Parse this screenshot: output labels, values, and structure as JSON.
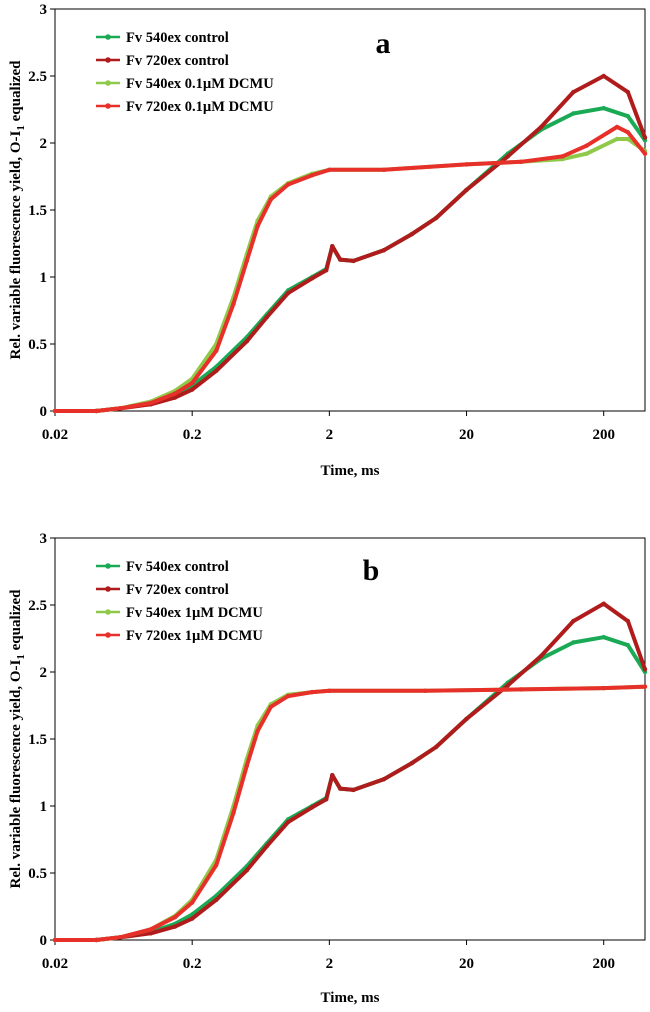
{
  "chart_data": [
    {
      "type": "line",
      "panel_label": "a",
      "xlabel": "Time, ms",
      "ylabel": "Rel. variable fluorescence yield, O-I",
      "ylabel_sub": "1",
      "ylabel_suffix": " equalized",
      "x_scale": "log",
      "xlim": [
        0.02,
        400
      ],
      "ylim": [
        0,
        3
      ],
      "xticks": [
        {
          "v": 0.02,
          "label": "0.02"
        },
        {
          "v": 0.2,
          "label": "0.2"
        },
        {
          "v": 2,
          "label": "2"
        },
        {
          "v": 20,
          "label": "20"
        },
        {
          "v": 200,
          "label": "200"
        }
      ],
      "yticks": [
        {
          "v": 0,
          "label": "0"
        },
        {
          "v": 0.5,
          "label": "0.5"
        },
        {
          "v": 1,
          "label": "1"
        },
        {
          "v": 1.5,
          "label": "1.5"
        },
        {
          "v": 2,
          "label": "2"
        },
        {
          "v": 2.5,
          "label": "2.5"
        },
        {
          "v": 3,
          "label": "3"
        }
      ],
      "legend_position": "top-left",
      "series": [
        {
          "name": "Fv 540ex control",
          "color": "#1aaa55",
          "points": [
            [
              0.02,
              0
            ],
            [
              0.04,
              0
            ],
            [
              0.06,
              0.02
            ],
            [
              0.1,
              0.06
            ],
            [
              0.15,
              0.12
            ],
            [
              0.2,
              0.19
            ],
            [
              0.3,
              0.33
            ],
            [
              0.5,
              0.55
            ],
            [
              0.7,
              0.72
            ],
            [
              1,
              0.9
            ],
            [
              1.5,
              1.0
            ],
            [
              1.9,
              1.06
            ],
            [
              2.1,
              1.23
            ],
            [
              2.4,
              1.13
            ],
            [
              3,
              1.12
            ],
            [
              5,
              1.2
            ],
            [
              8,
              1.32
            ],
            [
              12,
              1.44
            ],
            [
              20,
              1.65
            ],
            [
              40,
              1.92
            ],
            [
              70,
              2.1
            ],
            [
              120,
              2.22
            ],
            [
              200,
              2.26
            ],
            [
              300,
              2.2
            ],
            [
              400,
              2.02
            ]
          ]
        },
        {
          "name": "Fv 720ex control",
          "color": "#b01c1c",
          "points": [
            [
              0.02,
              0
            ],
            [
              0.04,
              0
            ],
            [
              0.06,
              0.02
            ],
            [
              0.1,
              0.05
            ],
            [
              0.15,
              0.1
            ],
            [
              0.2,
              0.16
            ],
            [
              0.3,
              0.3
            ],
            [
              0.5,
              0.52
            ],
            [
              0.7,
              0.7
            ],
            [
              1,
              0.88
            ],
            [
              1.5,
              0.99
            ],
            [
              1.9,
              1.05
            ],
            [
              2.1,
              1.23
            ],
            [
              2.4,
              1.13
            ],
            [
              3,
              1.12
            ],
            [
              5,
              1.2
            ],
            [
              8,
              1.32
            ],
            [
              12,
              1.44
            ],
            [
              20,
              1.65
            ],
            [
              40,
              1.9
            ],
            [
              70,
              2.12
            ],
            [
              120,
              2.38
            ],
            [
              200,
              2.5
            ],
            [
              300,
              2.38
            ],
            [
              400,
              2.04
            ]
          ]
        },
        {
          "name": "Fv 540ex 0.1µM DCMU",
          "color": "#8fc94a",
          "points": [
            [
              0.02,
              0
            ],
            [
              0.04,
              0
            ],
            [
              0.06,
              0.02
            ],
            [
              0.1,
              0.07
            ],
            [
              0.15,
              0.15
            ],
            [
              0.2,
              0.24
            ],
            [
              0.3,
              0.5
            ],
            [
              0.4,
              0.85
            ],
            [
              0.5,
              1.17
            ],
            [
              0.6,
              1.42
            ],
            [
              0.75,
              1.6
            ],
            [
              1,
              1.7
            ],
            [
              1.5,
              1.77
            ],
            [
              2,
              1.8
            ],
            [
              5,
              1.8
            ],
            [
              20,
              1.84
            ],
            [
              50,
              1.86
            ],
            [
              100,
              1.88
            ],
            [
              150,
              1.92
            ],
            [
              250,
              2.03
            ],
            [
              300,
              2.03
            ],
            [
              400,
              1.94
            ]
          ]
        },
        {
          "name": "Fv 720ex 0.1µM DCMU",
          "color": "#e8302a",
          "points": [
            [
              0.02,
              0
            ],
            [
              0.04,
              0
            ],
            [
              0.06,
              0.02
            ],
            [
              0.1,
              0.06
            ],
            [
              0.15,
              0.13
            ],
            [
              0.2,
              0.21
            ],
            [
              0.3,
              0.45
            ],
            [
              0.4,
              0.8
            ],
            [
              0.5,
              1.12
            ],
            [
              0.6,
              1.38
            ],
            [
              0.75,
              1.58
            ],
            [
              1,
              1.69
            ],
            [
              1.5,
              1.76
            ],
            [
              2,
              1.8
            ],
            [
              5,
              1.8
            ],
            [
              20,
              1.84
            ],
            [
              50,
              1.86
            ],
            [
              100,
              1.9
            ],
            [
              150,
              1.98
            ],
            [
              250,
              2.12
            ],
            [
              300,
              2.08
            ],
            [
              400,
              1.92
            ]
          ]
        }
      ]
    },
    {
      "type": "line",
      "panel_label": "b",
      "xlabel": "Time, ms",
      "ylabel": "Rel. variable fluorescence yield, O-I",
      "ylabel_sub": "1",
      "ylabel_suffix": " equalized",
      "x_scale": "log",
      "xlim": [
        0.02,
        400
      ],
      "ylim": [
        0,
        3
      ],
      "xticks": [
        {
          "v": 0.02,
          "label": "0.02"
        },
        {
          "v": 0.2,
          "label": "0.2"
        },
        {
          "v": 2,
          "label": "2"
        },
        {
          "v": 20,
          "label": "20"
        },
        {
          "v": 200,
          "label": "200"
        }
      ],
      "yticks": [
        {
          "v": 0,
          "label": "0"
        },
        {
          "v": 0.5,
          "label": "0.5"
        },
        {
          "v": 1,
          "label": "1"
        },
        {
          "v": 1.5,
          "label": "1.5"
        },
        {
          "v": 2,
          "label": "2"
        },
        {
          "v": 2.5,
          "label": "2.5"
        },
        {
          "v": 3,
          "label": "3"
        }
      ],
      "legend_position": "top-left",
      "series": [
        {
          "name": "Fv 540ex control",
          "color": "#1aaa55",
          "points": [
            [
              0.02,
              0
            ],
            [
              0.04,
              0
            ],
            [
              0.06,
              0.02
            ],
            [
              0.1,
              0.06
            ],
            [
              0.15,
              0.12
            ],
            [
              0.2,
              0.19
            ],
            [
              0.3,
              0.33
            ],
            [
              0.5,
              0.55
            ],
            [
              0.7,
              0.72
            ],
            [
              1,
              0.9
            ],
            [
              1.5,
              1.0
            ],
            [
              1.9,
              1.06
            ],
            [
              2.1,
              1.23
            ],
            [
              2.4,
              1.13
            ],
            [
              3,
              1.12
            ],
            [
              5,
              1.2
            ],
            [
              8,
              1.32
            ],
            [
              12,
              1.44
            ],
            [
              20,
              1.65
            ],
            [
              40,
              1.92
            ],
            [
              70,
              2.1
            ],
            [
              120,
              2.22
            ],
            [
              200,
              2.26
            ],
            [
              300,
              2.2
            ],
            [
              400,
              2.0
            ]
          ]
        },
        {
          "name": "Fv 720ex control",
          "color": "#b01c1c",
          "points": [
            [
              0.02,
              0
            ],
            [
              0.04,
              0
            ],
            [
              0.06,
              0.02
            ],
            [
              0.1,
              0.05
            ],
            [
              0.15,
              0.1
            ],
            [
              0.2,
              0.16
            ],
            [
              0.3,
              0.3
            ],
            [
              0.5,
              0.52
            ],
            [
              0.7,
              0.7
            ],
            [
              1,
              0.88
            ],
            [
              1.5,
              0.99
            ],
            [
              1.9,
              1.05
            ],
            [
              2.1,
              1.23
            ],
            [
              2.4,
              1.13
            ],
            [
              3,
              1.12
            ],
            [
              5,
              1.2
            ],
            [
              8,
              1.32
            ],
            [
              12,
              1.44
            ],
            [
              20,
              1.65
            ],
            [
              40,
              1.9
            ],
            [
              70,
              2.12
            ],
            [
              120,
              2.38
            ],
            [
              200,
              2.51
            ],
            [
              300,
              2.38
            ],
            [
              400,
              2.02
            ]
          ]
        },
        {
          "name": "Fv 540ex 1µM DCMU",
          "color": "#8fc94a",
          "points": [
            [
              0.02,
              0
            ],
            [
              0.04,
              0
            ],
            [
              0.06,
              0.02
            ],
            [
              0.1,
              0.08
            ],
            [
              0.15,
              0.18
            ],
            [
              0.2,
              0.3
            ],
            [
              0.3,
              0.6
            ],
            [
              0.4,
              1.0
            ],
            [
              0.5,
              1.35
            ],
            [
              0.6,
              1.6
            ],
            [
              0.75,
              1.76
            ],
            [
              1,
              1.83
            ],
            [
              1.5,
              1.85
            ],
            [
              2,
              1.86
            ],
            [
              10,
              1.86
            ],
            [
              50,
              1.87
            ],
            [
              200,
              1.88
            ],
            [
              400,
              1.89
            ]
          ]
        },
        {
          "name": "Fv 720ex 1µM DCMU",
          "color": "#e8302a",
          "points": [
            [
              0.02,
              0
            ],
            [
              0.04,
              0
            ],
            [
              0.06,
              0.02
            ],
            [
              0.1,
              0.08
            ],
            [
              0.15,
              0.17
            ],
            [
              0.2,
              0.28
            ],
            [
              0.3,
              0.56
            ],
            [
              0.4,
              0.95
            ],
            [
              0.5,
              1.3
            ],
            [
              0.6,
              1.56
            ],
            [
              0.75,
              1.74
            ],
            [
              1,
              1.82
            ],
            [
              1.5,
              1.85
            ],
            [
              2,
              1.86
            ],
            [
              10,
              1.86
            ],
            [
              50,
              1.87
            ],
            [
              200,
              1.88
            ],
            [
              400,
              1.89
            ]
          ]
        }
      ]
    }
  ]
}
